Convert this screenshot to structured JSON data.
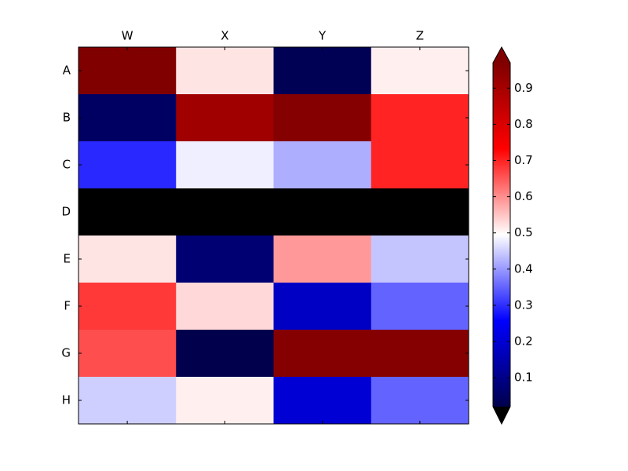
{
  "chart_data": {
    "type": "heatmap",
    "x_categories": [
      "W",
      "X",
      "Y",
      "Z"
    ],
    "y_categories": [
      "A",
      "B",
      "C",
      "D",
      "E",
      "F",
      "G",
      "H"
    ],
    "values": [
      [
        0.97,
        0.52,
        0.03,
        0.51
      ],
      [
        0.05,
        0.91,
        0.96,
        0.7
      ],
      [
        0.295,
        0.48,
        0.42,
        0.7
      ],
      [
        0.0,
        0.0,
        0.0,
        0.0
      ],
      [
        0.52,
        0.07,
        0.59,
        0.44
      ],
      [
        0.68,
        0.53,
        0.18,
        0.35
      ],
      [
        0.66,
        0.02,
        0.96,
        0.96
      ],
      [
        0.45,
        0.51,
        0.2,
        0.35
      ]
    ],
    "colormap": "seismic",
    "colorbar_lim": [
      0.02,
      0.97
    ],
    "colorbar_ticks": [
      0.1,
      0.2,
      0.3,
      0.4,
      0.5,
      0.6,
      0.7,
      0.8,
      0.9
    ],
    "under_color": "#000000",
    "over_color": "#800000"
  }
}
